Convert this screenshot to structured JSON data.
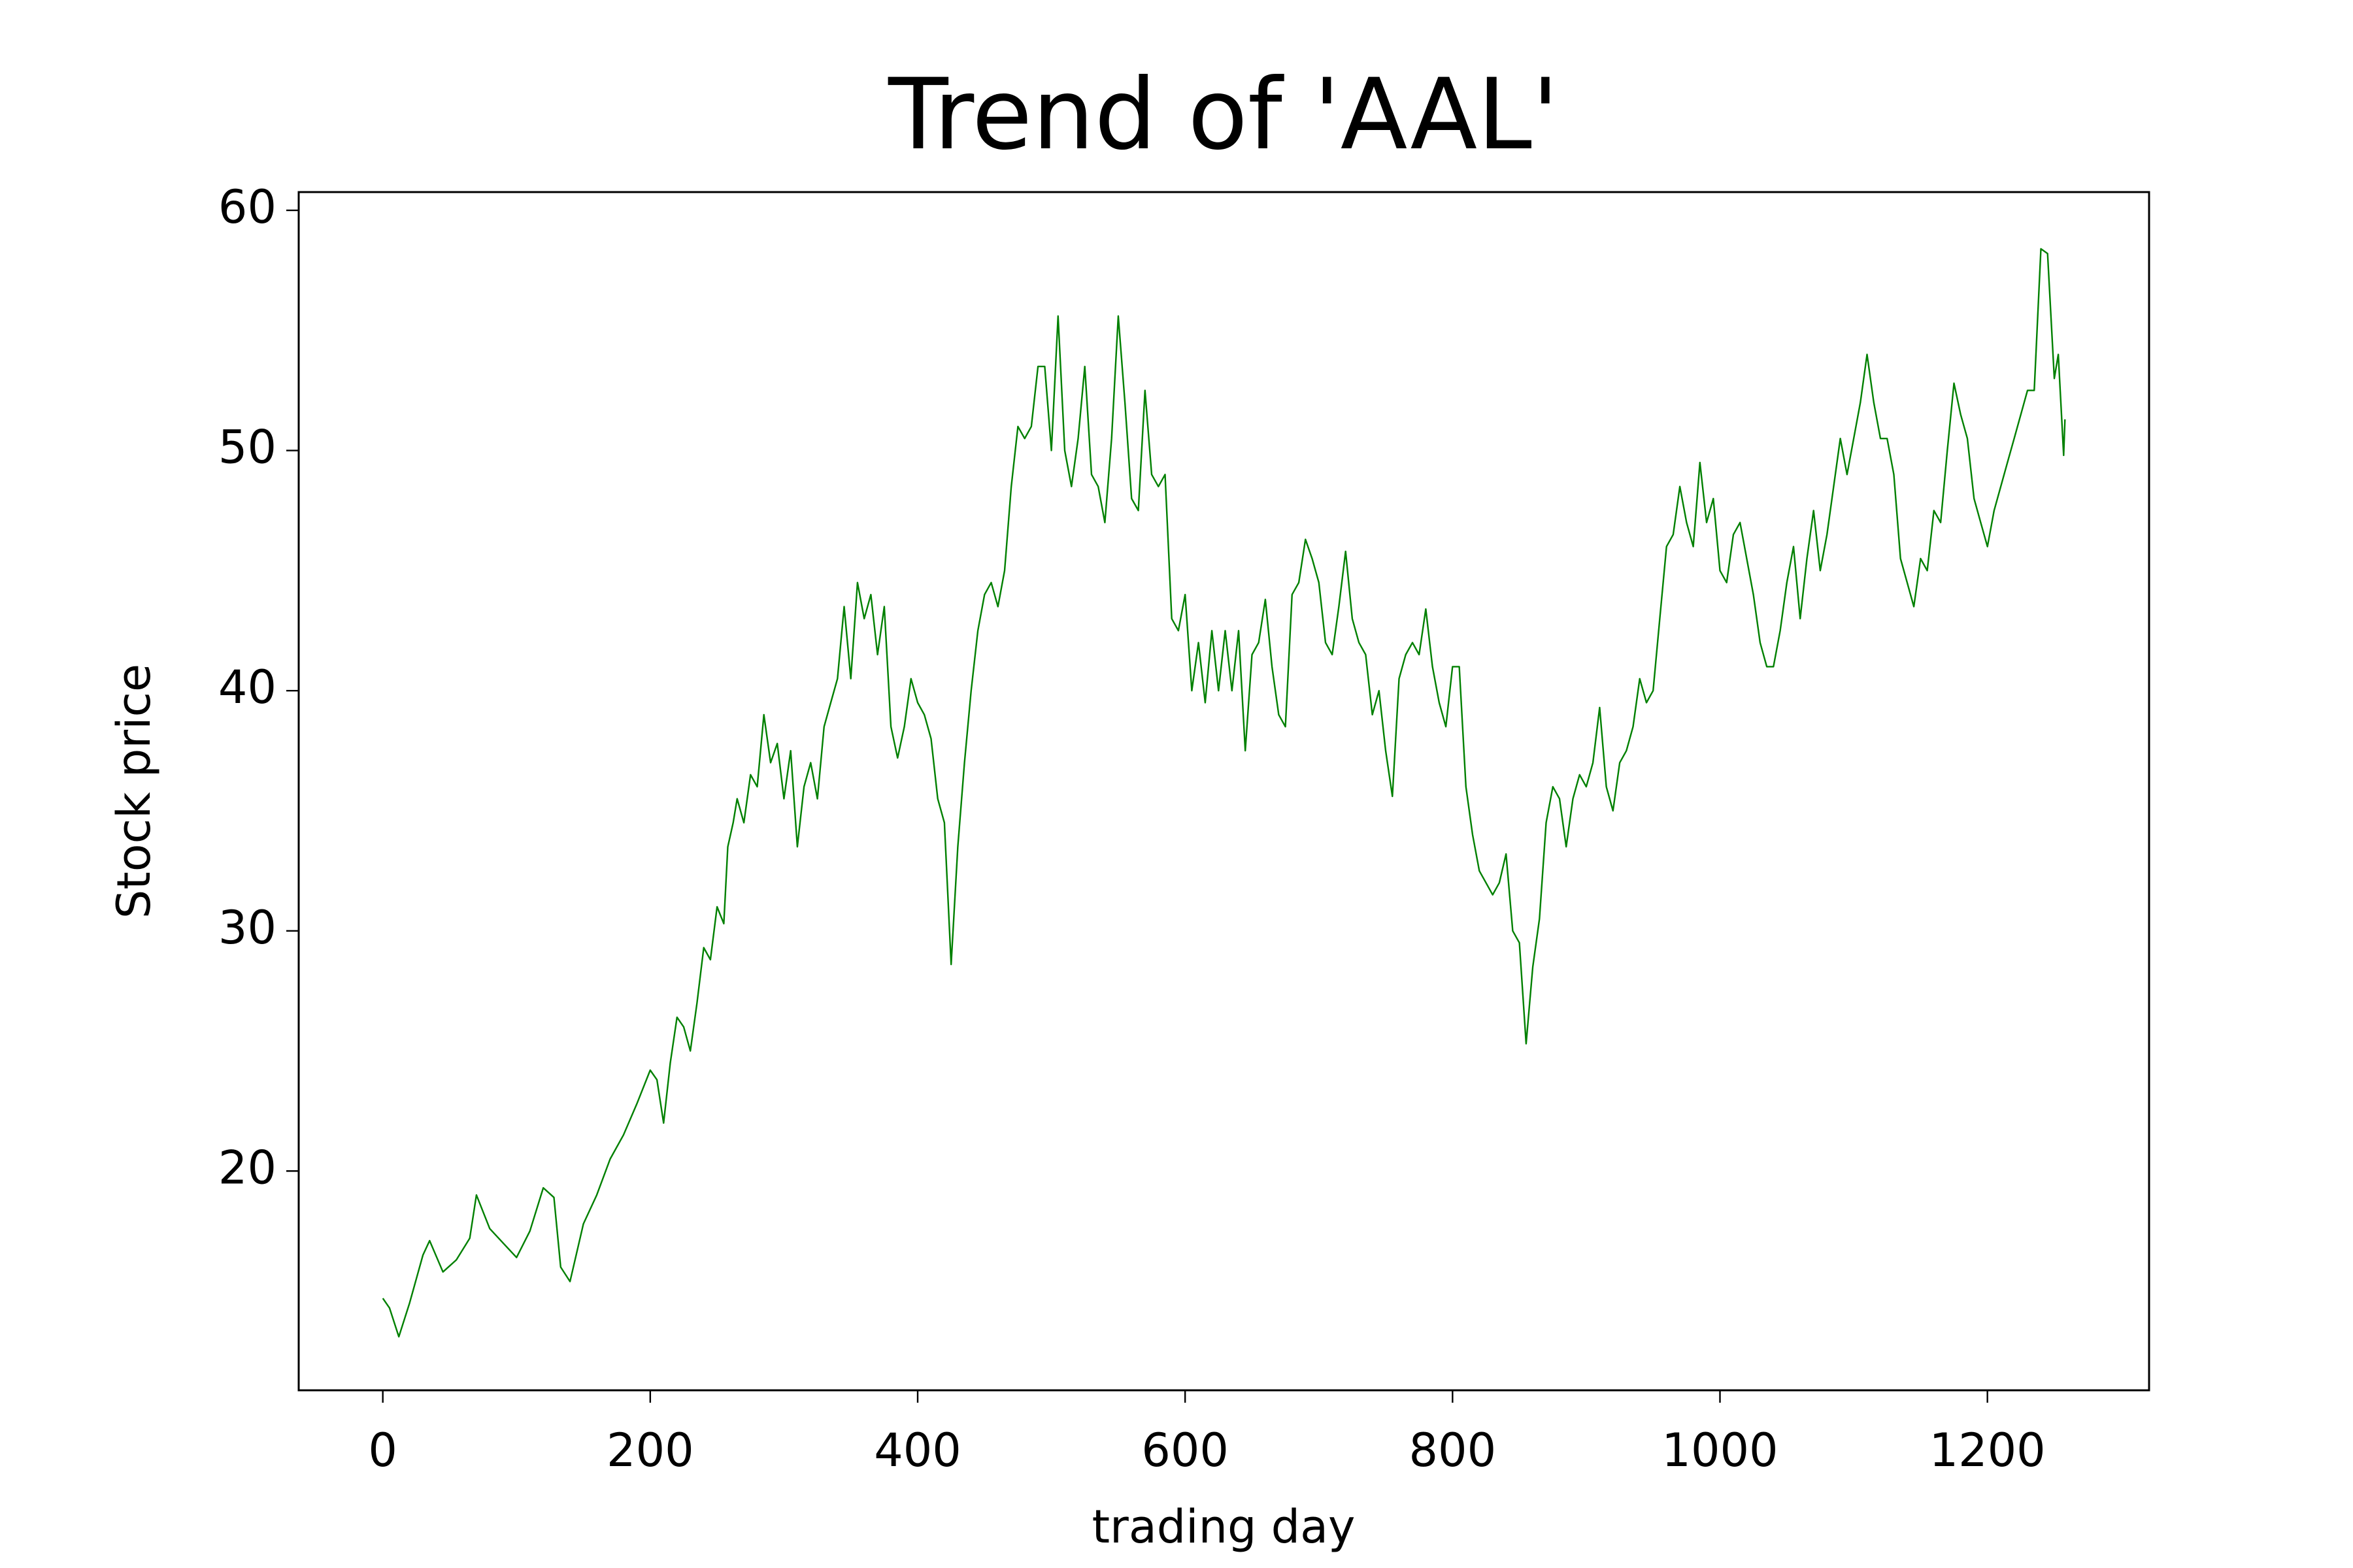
{
  "chart_data": {
    "type": "line",
    "title": "Trend of 'AAL'",
    "xlabel": "trading day",
    "ylabel": "Stock price",
    "xlim": [
      -62.9,
      1320.9
    ],
    "ylim": [
      10.87,
      60.76
    ],
    "xticks": [
      0,
      200,
      400,
      600,
      800,
      1000,
      1200
    ],
    "yticks": [
      20,
      30,
      40,
      50,
      60
    ],
    "x": [
      0,
      5,
      12,
      20,
      30,
      35,
      45,
      55,
      65,
      70,
      80,
      90,
      100,
      110,
      120,
      128,
      133,
      140,
      150,
      160,
      170,
      180,
      190,
      200,
      205,
      210,
      215,
      220,
      225,
      230,
      235,
      240,
      245,
      250,
      255,
      258,
      262,
      265,
      270,
      275,
      280,
      285,
      290,
      295,
      300,
      305,
      310,
      315,
      320,
      325,
      330,
      335,
      340,
      345,
      350,
      355,
      360,
      365,
      370,
      375,
      380,
      385,
      390,
      395,
      400,
      405,
      410,
      415,
      420,
      425,
      430,
      435,
      440,
      445,
      450,
      455,
      460,
      465,
      470,
      475,
      480,
      485,
      490,
      495,
      500,
      505,
      510,
      515,
      520,
      525,
      530,
      535,
      540,
      545,
      550,
      555,
      560,
      565,
      570,
      575,
      580,
      585,
      590,
      595,
      600,
      605,
      610,
      615,
      620,
      625,
      630,
      635,
      640,
      645,
      650,
      655,
      660,
      665,
      670,
      675,
      680,
      685,
      690,
      695,
      700,
      705,
      710,
      715,
      720,
      725,
      730,
      735,
      740,
      745,
      750,
      755,
      760,
      765,
      770,
      775,
      780,
      785,
      790,
      795,
      800,
      805,
      810,
      815,
      820,
      825,
      830,
      835,
      840,
      845,
      850,
      855,
      860,
      865,
      870,
      875,
      880,
      885,
      890,
      895,
      900,
      905,
      910,
      915,
      920,
      925,
      930,
      935,
      940,
      945,
      950,
      955,
      960,
      965,
      970,
      975,
      980,
      985,
      990,
      995,
      1000,
      1005,
      1010,
      1015,
      1020,
      1025,
      1030,
      1035,
      1040,
      1045,
      1050,
      1055,
      1060,
      1065,
      1070,
      1075,
      1080,
      1085,
      1090,
      1095,
      1100,
      1105,
      1110,
      1115,
      1120,
      1125,
      1130,
      1135,
      1140,
      1145,
      1150,
      1155,
      1160,
      1165,
      1170,
      1175,
      1180,
      1185,
      1190,
      1195,
      1200,
      1205,
      1210,
      1215,
      1220,
      1225,
      1230,
      1235,
      1240,
      1245,
      1250,
      1253,
      1257,
      1258
    ],
    "series": [
      {
        "name": "AAL",
        "color": "#008000",
        "values": [
          14.7,
          14.3,
          13.1,
          14.5,
          16.5,
          17.1,
          15.8,
          16.3,
          17.2,
          19.0,
          17.6,
          17.0,
          16.4,
          17.5,
          19.3,
          18.9,
          16.0,
          15.4,
          17.8,
          19.0,
          20.5,
          21.5,
          22.8,
          24.2,
          23.8,
          22.0,
          24.5,
          26.4,
          26.0,
          25.0,
          27.0,
          29.3,
          28.8,
          31.0,
          30.3,
          33.5,
          34.5,
          35.5,
          34.5,
          36.5,
          36.0,
          39.0,
          37.0,
          37.8,
          35.5,
          37.5,
          33.5,
          36.0,
          37.0,
          35.5,
          38.5,
          39.5,
          40.5,
          43.5,
          40.5,
          44.5,
          43.0,
          44.0,
          41.5,
          43.5,
          38.5,
          37.2,
          38.5,
          40.5,
          39.5,
          39.0,
          38.0,
          35.5,
          34.5,
          28.6,
          33.5,
          37.0,
          40.0,
          42.5,
          44.0,
          44.5,
          43.5,
          45.0,
          48.5,
          51.0,
          50.5,
          51.0,
          53.5,
          53.5,
          50.0,
          55.6,
          50.0,
          48.5,
          50.5,
          53.5,
          49.0,
          48.5,
          47.0,
          50.5,
          55.6,
          52.0,
          48.0,
          47.5,
          52.5,
          49.0,
          48.5,
          49.0,
          43.0,
          42.5,
          44.0,
          40.0,
          42.0,
          39.5,
          42.5,
          40.0,
          42.5,
          40.0,
          42.5,
          37.5,
          41.5,
          42.0,
          43.8,
          41.0,
          39.0,
          38.5,
          44.0,
          44.5,
          46.3,
          45.5,
          44.5,
          42.0,
          41.5,
          43.5,
          45.8,
          43.0,
          42.0,
          41.5,
          39.0,
          40.0,
          37.5,
          35.6,
          40.5,
          41.5,
          42.0,
          41.5,
          43.4,
          41.0,
          39.5,
          38.5,
          41.0,
          41.0,
          36.0,
          34.0,
          32.5,
          32.0,
          31.5,
          32.0,
          33.2,
          30.0,
          29.5,
          25.3,
          28.5,
          30.5,
          34.5,
          36.0,
          35.5,
          33.5,
          35.5,
          36.5,
          36.0,
          37.0,
          39.3,
          36.0,
          35.0,
          37.0,
          37.5,
          38.5,
          40.5,
          39.5,
          40.0,
          43.0,
          46.0,
          46.5,
          48.5,
          47.0,
          46.0,
          49.5,
          47.0,
          48.0,
          45.0,
          44.5,
          46.5,
          47.0,
          45.5,
          44.0,
          42.0,
          41.0,
          41.0,
          42.5,
          44.5,
          46.0,
          43.0,
          45.5,
          47.5,
          45.0,
          46.5,
          48.5,
          50.5,
          49.0,
          50.5,
          52.0,
          54.0,
          52.0,
          50.5,
          50.5,
          49.0,
          45.5,
          44.5,
          43.5,
          45.5,
          45.0,
          47.5,
          47.0,
          50.0,
          52.8,
          51.5,
          50.5,
          48.0,
          47.0,
          46.0,
          47.5,
          48.5,
          49.5,
          50.5,
          51.5,
          52.5,
          52.5,
          58.4,
          58.2,
          53.0,
          54.0,
          49.8,
          51.3
        ]
      }
    ]
  }
}
